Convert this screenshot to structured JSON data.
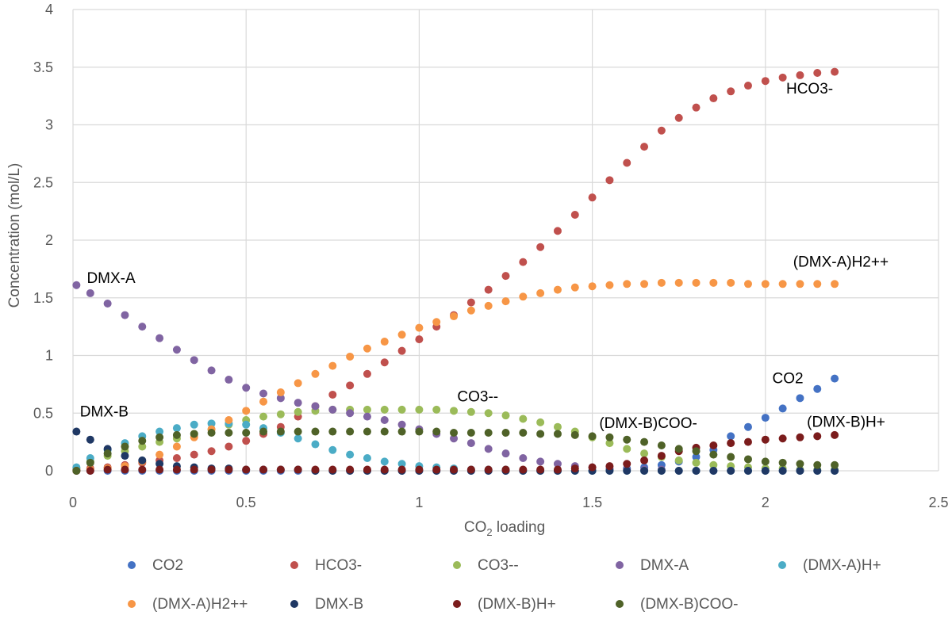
{
  "chart_data": {
    "type": "scatter",
    "xlabel_main": "CO",
    "xlabel_sub": "2",
    "xlabel_rest": " loading",
    "ylabel": "Concentration (mol/L)",
    "xlim": [
      0,
      2.5
    ],
    "ylim": [
      0,
      4
    ],
    "xticks": [
      0,
      0.5,
      1,
      1.5,
      2,
      2.5
    ],
    "xtick_labels": [
      "0",
      "0.5",
      "1",
      "1.5",
      "2",
      "2.5"
    ],
    "yticks": [
      0,
      0.5,
      1,
      1.5,
      2,
      2.5,
      3,
      3.5,
      4
    ],
    "ytick_labels": [
      "0",
      "0.5",
      "1",
      "1.5",
      "2",
      "2.5",
      "3",
      "3.5",
      "4"
    ],
    "grid": true,
    "legend_position": "bottom",
    "x": [
      0.01,
      0.05,
      0.1,
      0.15,
      0.2,
      0.25,
      0.3,
      0.35,
      0.4,
      0.45,
      0.5,
      0.55,
      0.6,
      0.65,
      0.7,
      0.75,
      0.8,
      0.85,
      0.9,
      0.95,
      1.0,
      1.05,
      1.1,
      1.15,
      1.2,
      1.25,
      1.3,
      1.35,
      1.4,
      1.45,
      1.5,
      1.55,
      1.6,
      1.65,
      1.7,
      1.75,
      1.8,
      1.85,
      1.9,
      1.95,
      2.0,
      2.05,
      2.1,
      2.15,
      2.2
    ],
    "series": [
      {
        "name": "CO2",
        "color": "#4472C4",
        "values": [
          0,
          0,
          0,
          0,
          0,
          0,
          0,
          0,
          0,
          0,
          0,
          0,
          0,
          0,
          0,
          0,
          0,
          0,
          0,
          0,
          0,
          0,
          0,
          0,
          0,
          0,
          0,
          0,
          0,
          0,
          0,
          0.01,
          0.02,
          0.03,
          0.05,
          0.08,
          0.12,
          0.18,
          0.3,
          0.38,
          0.46,
          0.54,
          0.63,
          0.71,
          0.8
        ]
      },
      {
        "name": "HCO3-",
        "color": "#C0504D",
        "values": [
          0.01,
          0.02,
          0.03,
          0.05,
          0.07,
          0.09,
          0.11,
          0.14,
          0.17,
          0.21,
          0.26,
          0.32,
          0.38,
          0.47,
          0.56,
          0.66,
          0.74,
          0.84,
          0.94,
          1.04,
          1.14,
          1.25,
          1.35,
          1.46,
          1.57,
          1.69,
          1.81,
          1.94,
          2.08,
          2.22,
          2.37,
          2.52,
          2.67,
          2.81,
          2.95,
          3.06,
          3.15,
          3.23,
          3.29,
          3.34,
          3.38,
          3.41,
          3.43,
          3.45,
          3.46
        ]
      },
      {
        "name": "CO3--",
        "color": "#9BBB59",
        "values": [
          0.02,
          0.08,
          0.13,
          0.17,
          0.21,
          0.25,
          0.28,
          0.32,
          0.36,
          0.4,
          0.44,
          0.47,
          0.49,
          0.51,
          0.52,
          0.53,
          0.53,
          0.53,
          0.53,
          0.53,
          0.53,
          0.53,
          0.52,
          0.51,
          0.5,
          0.48,
          0.45,
          0.42,
          0.38,
          0.34,
          0.29,
          0.24,
          0.19,
          0.15,
          0.12,
          0.09,
          0.07,
          0.05,
          0.04,
          0.03,
          0.02,
          0.02,
          0.01,
          0.01,
          0.01
        ]
      },
      {
        "name": "DMX-A",
        "color": "#8064A2",
        "values": [
          1.61,
          1.54,
          1.45,
          1.35,
          1.25,
          1.15,
          1.05,
          0.96,
          0.87,
          0.79,
          0.72,
          0.67,
          0.63,
          0.59,
          0.56,
          0.53,
          0.5,
          0.47,
          0.44,
          0.4,
          0.36,
          0.32,
          0.28,
          0.24,
          0.19,
          0.15,
          0.11,
          0.08,
          0.06,
          0.04,
          0.03,
          0.02,
          0.01,
          0.01,
          0.01,
          0,
          0,
          0,
          0,
          0,
          0,
          0,
          0,
          0,
          0
        ]
      },
      {
        "name": "(DMX-A)H+",
        "color": "#4BACC6",
        "values": [
          0.03,
          0.11,
          0.18,
          0.24,
          0.3,
          0.34,
          0.37,
          0.4,
          0.41,
          0.41,
          0.4,
          0.37,
          0.33,
          0.28,
          0.23,
          0.18,
          0.14,
          0.11,
          0.08,
          0.06,
          0.04,
          0.03,
          0.02,
          0.01,
          0.01,
          0.01,
          0,
          0,
          0,
          0,
          0,
          0,
          0,
          0,
          0,
          0,
          0,
          0,
          0,
          0,
          0,
          0,
          0,
          0,
          0
        ]
      },
      {
        "name": "(DMX-A)H2++",
        "color": "#F79646",
        "values": [
          0,
          0.01,
          0.02,
          0.04,
          0.08,
          0.14,
          0.21,
          0.29,
          0.36,
          0.44,
          0.52,
          0.6,
          0.68,
          0.76,
          0.84,
          0.91,
          0.99,
          1.06,
          1.12,
          1.18,
          1.24,
          1.29,
          1.34,
          1.39,
          1.43,
          1.47,
          1.51,
          1.54,
          1.57,
          1.59,
          1.6,
          1.61,
          1.62,
          1.62,
          1.63,
          1.63,
          1.63,
          1.63,
          1.63,
          1.62,
          1.62,
          1.62,
          1.62,
          1.62,
          1.62
        ]
      },
      {
        "name": "DMX-B",
        "color": "#1F3864",
        "values": [
          0.34,
          0.27,
          0.19,
          0.13,
          0.09,
          0.06,
          0.04,
          0.03,
          0.02,
          0.02,
          0.01,
          0.01,
          0.01,
          0.01,
          0,
          0,
          0,
          0,
          0,
          0,
          0,
          0,
          0,
          0,
          0,
          0,
          0,
          0,
          0,
          0,
          0,
          0,
          0,
          0,
          0,
          0,
          0,
          0,
          0,
          0,
          0,
          0,
          0,
          0,
          0
        ]
      },
      {
        "name": "(DMX-B)H+",
        "color": "#7B1C1C",
        "values": [
          0,
          0,
          0.01,
          0.01,
          0.01,
          0.01,
          0.01,
          0.01,
          0.01,
          0.01,
          0.01,
          0.01,
          0.01,
          0.01,
          0.01,
          0.01,
          0.01,
          0.01,
          0.01,
          0.01,
          0.01,
          0.01,
          0.01,
          0.01,
          0.01,
          0.01,
          0.01,
          0.01,
          0.01,
          0.02,
          0.03,
          0.04,
          0.06,
          0.09,
          0.13,
          0.17,
          0.2,
          0.22,
          0.24,
          0.25,
          0.27,
          0.28,
          0.29,
          0.3,
          0.31
        ]
      },
      {
        "name": "(DMX-B)COO-",
        "color": "#4F6228",
        "values": [
          0,
          0.07,
          0.15,
          0.21,
          0.26,
          0.29,
          0.31,
          0.32,
          0.33,
          0.33,
          0.33,
          0.34,
          0.34,
          0.34,
          0.34,
          0.34,
          0.34,
          0.34,
          0.34,
          0.34,
          0.34,
          0.34,
          0.33,
          0.33,
          0.33,
          0.33,
          0.33,
          0.32,
          0.32,
          0.31,
          0.3,
          0.29,
          0.27,
          0.25,
          0.22,
          0.19,
          0.17,
          0.14,
          0.12,
          0.1,
          0.08,
          0.07,
          0.06,
          0.05,
          0.05
        ]
      }
    ],
    "annotations": [
      {
        "text": "DMX-A",
        "x": 0.04,
        "y": 1.63
      },
      {
        "text": "DMX-B",
        "x": 0.02,
        "y": 0.47
      },
      {
        "text": "CO3--",
        "x": 1.11,
        "y": 0.6
      },
      {
        "text": "(DMX-B)COO-",
        "x": 1.52,
        "y": 0.37
      },
      {
        "text": "HCO3-",
        "x": 2.06,
        "y": 3.27
      },
      {
        "text": "(DMX-A)H2++",
        "x": 2.08,
        "y": 1.77
      },
      {
        "text": "CO2",
        "x": 2.02,
        "y": 0.76
      },
      {
        "text": "(DMX-B)H+",
        "x": 2.12,
        "y": 0.38
      }
    ]
  }
}
